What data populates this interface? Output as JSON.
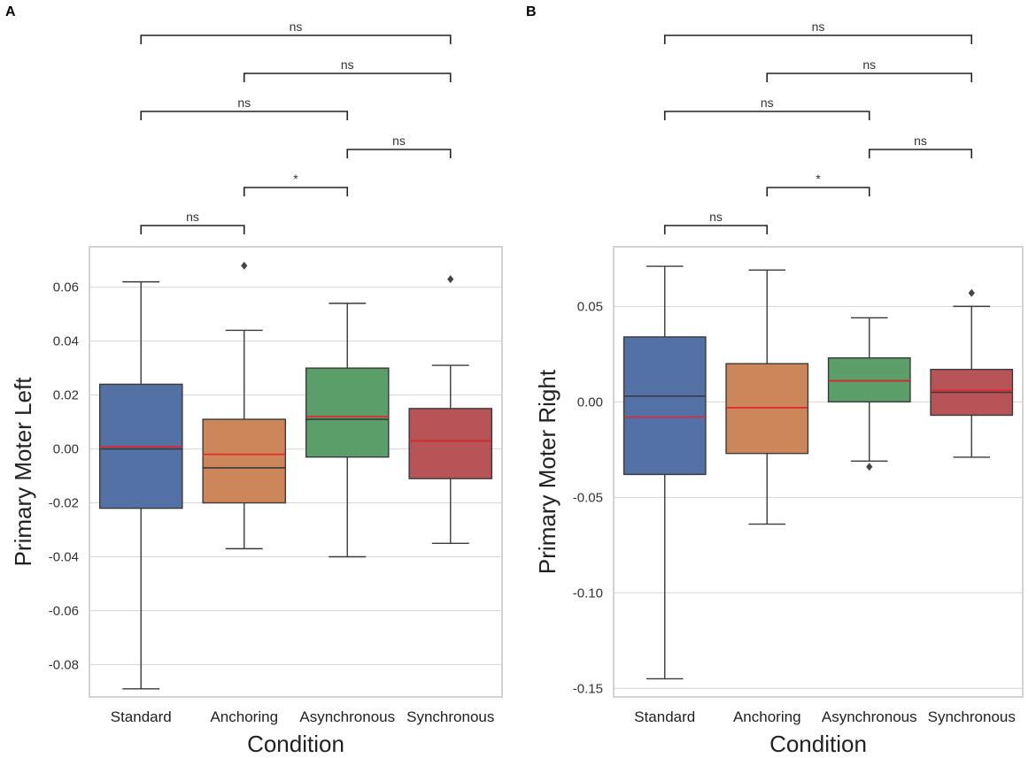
{
  "colors": {
    "Standard": "#5471a6",
    "Anchoring": "#cd8659",
    "Asynchronous": "#5b9e6a",
    "Synchronous": "#b65457",
    "mean_line": "#e8242b",
    "median_line": "#3a3a3a",
    "grid": "#d6d6d6",
    "frame": "#d3d3d3",
    "whisker": "#3a3a3a"
  },
  "chart_data": [
    {
      "panel_label": "A",
      "type": "box",
      "xlabel": "Condition",
      "ylabel": "Primary Moter Left",
      "categories": [
        "Standard",
        "Anchoring",
        "Asynchronous",
        "Synchronous"
      ],
      "ylim": [
        -0.092,
        0.075
      ],
      "yticks": [
        0.06,
        0.04,
        0.02,
        0.0,
        -0.02,
        -0.04,
        -0.06,
        -0.08
      ],
      "ytick_labels": [
        "0.06",
        "0.04",
        "0.02",
        "0.00",
        "-0.02",
        "-0.04",
        "-0.06",
        "-0.08"
      ],
      "grid": true,
      "boxes": [
        {
          "category": "Standard",
          "whisker_low": -0.089,
          "q1": -0.022,
          "median": 0.0,
          "mean": 0.0008,
          "q3": 0.024,
          "whisker_high": 0.062,
          "outliers": []
        },
        {
          "category": "Anchoring",
          "whisker_low": -0.037,
          "q1": -0.02,
          "median": -0.007,
          "mean": -0.002,
          "q3": 0.011,
          "whisker_high": 0.044,
          "outliers": [
            0.068
          ]
        },
        {
          "category": "Asynchronous",
          "whisker_low": -0.04,
          "q1": -0.003,
          "median": 0.011,
          "mean": 0.012,
          "q3": 0.03,
          "whisker_high": 0.054,
          "outliers": []
        },
        {
          "category": "Synchronous",
          "whisker_low": -0.035,
          "q1": -0.011,
          "median": 0.003,
          "mean": 0.003,
          "q3": 0.015,
          "whisker_high": 0.031,
          "outliers": [
            0.063
          ]
        }
      ],
      "comparisons": [
        {
          "from": "Standard",
          "to": "Synchronous",
          "label": "ns"
        },
        {
          "from": "Anchoring",
          "to": "Synchronous",
          "label": "ns"
        },
        {
          "from": "Standard",
          "to": "Asynchronous",
          "label": "ns"
        },
        {
          "from": "Asynchronous",
          "to": "Synchronous",
          "label": "ns"
        },
        {
          "from": "Anchoring",
          "to": "Asynchronous",
          "label": "*"
        },
        {
          "from": "Standard",
          "to": "Anchoring",
          "label": "ns"
        }
      ]
    },
    {
      "panel_label": "B",
      "type": "box",
      "xlabel": "Condition",
      "ylabel": "Primary Moter Right",
      "categories": [
        "Standard",
        "Anchoring",
        "Asynchronous",
        "Synchronous"
      ],
      "ylim": [
        -0.1545,
        0.0812
      ],
      "yticks": [
        0.05,
        0.0,
        -0.05,
        -0.1,
        -0.15
      ],
      "ytick_labels": [
        "0.05",
        "0.00",
        "-0.05",
        "-0.10",
        "-0.15"
      ],
      "grid": true,
      "boxes": [
        {
          "category": "Standard",
          "whisker_low": -0.145,
          "q1": -0.038,
          "median": 0.003,
          "mean": -0.008,
          "q3": 0.034,
          "whisker_high": 0.071,
          "outliers": []
        },
        {
          "category": "Anchoring",
          "whisker_low": -0.064,
          "q1": -0.027,
          "median": -0.003,
          "mean": -0.003,
          "q3": 0.02,
          "whisker_high": 0.069,
          "outliers": []
        },
        {
          "category": "Asynchronous",
          "whisker_low": -0.031,
          "q1": 0.0,
          "median": 0.011,
          "mean": 0.011,
          "q3": 0.023,
          "whisker_high": 0.044,
          "outliers": [
            -0.034
          ]
        },
        {
          "category": "Synchronous",
          "whisker_low": -0.029,
          "q1": -0.007,
          "median": 0.005,
          "mean": 0.006,
          "q3": 0.017,
          "whisker_high": 0.05,
          "outliers": [
            0.057
          ]
        }
      ],
      "comparisons": [
        {
          "from": "Standard",
          "to": "Synchronous",
          "label": "ns"
        },
        {
          "from": "Anchoring",
          "to": "Synchronous",
          "label": "ns"
        },
        {
          "from": "Standard",
          "to": "Asynchronous",
          "label": "ns"
        },
        {
          "from": "Asynchronous",
          "to": "Synchronous",
          "label": "ns"
        },
        {
          "from": "Anchoring",
          "to": "Asynchronous",
          "label": "*"
        },
        {
          "from": "Standard",
          "to": "Anchoring",
          "label": "ns"
        }
      ]
    }
  ]
}
